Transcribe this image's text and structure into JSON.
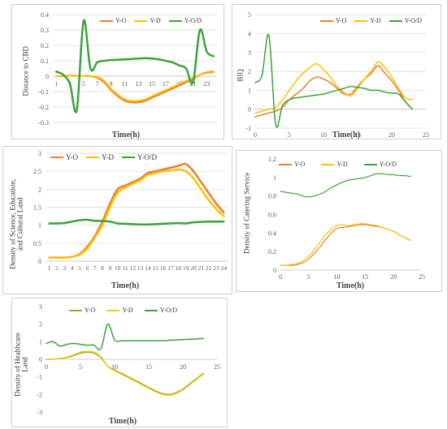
{
  "colors": {
    "Y-O": "#ED7D31",
    "Y-D": "#FFC000",
    "Y-O/D": "#3AA33A",
    "Y-O-p5": "#A6A22A",
    "Y-D-p5": "#E5D21C"
  },
  "chart_data": [
    {
      "type": "line",
      "ylabel": "Distance to CBD",
      "xlabel": "Time(h)",
      "ylim": [
        -0.3,
        0.4
      ],
      "yticks": [
        "0.4",
        "0.3",
        "0.2",
        "0.1",
        "0",
        "-0.1",
        "-0.2",
        "-0.3"
      ],
      "x": [
        1,
        2,
        3,
        4,
        5,
        6,
        7,
        8,
        9,
        10,
        11,
        12,
        13,
        14,
        15,
        16,
        17,
        18,
        19,
        20,
        21,
        22,
        23,
        24
      ],
      "xticks": [
        "1",
        "3",
        "5",
        "7",
        "9",
        "11",
        "13",
        "15",
        "17",
        "19",
        "21",
        "23"
      ],
      "legend_position": "top-center",
      "grid": "horizontal",
      "series": [
        {
          "name": "Y-O",
          "values": [
            0,
            0,
            0.005,
            0.003,
            0.002,
            0,
            -0.01,
            -0.04,
            -0.09,
            -0.13,
            -0.16,
            -0.17,
            -0.17,
            -0.16,
            -0.14,
            -0.12,
            -0.1,
            -0.08,
            -0.06,
            -0.04,
            -0.02,
            0.01,
            0.025,
            0.03
          ]
        },
        {
          "name": "Y-D",
          "values": [
            0,
            0,
            0.005,
            0.003,
            0.002,
            0,
            -0.005,
            -0.03,
            -0.08,
            -0.12,
            -0.15,
            -0.16,
            -0.16,
            -0.15,
            -0.13,
            -0.11,
            -0.09,
            -0.07,
            -0.05,
            -0.03,
            -0.01,
            0.01,
            0.02,
            0.025
          ]
        },
        {
          "name": "Y-O/D",
          "values": [
            0.03,
            0.01,
            -0.05,
            -0.22,
            0.36,
            0.05,
            0.09,
            0.1,
            0.105,
            0.107,
            0.11,
            0.112,
            0.115,
            0.117,
            0.115,
            0.11,
            0.1,
            0.09,
            0.07,
            0.05,
            -0.04,
            0.3,
            0.16,
            0.13
          ]
        }
      ]
    },
    {
      "type": "line",
      "ylabel": "BIQ",
      "xlabel": "Time(h)",
      "ylim": [
        -1,
        5
      ],
      "xlim": [
        0,
        25
      ],
      "yticks": [
        "5",
        "4",
        "3",
        "2",
        "1",
        "0",
        "-1"
      ],
      "xticks": [
        "0",
        "5",
        "10",
        "15",
        "20",
        "25"
      ],
      "legend_position": "top-right",
      "grid": "horizontal",
      "x": [
        0,
        1,
        2,
        3,
        4,
        5,
        6,
        7,
        8,
        9,
        10,
        11,
        12,
        13,
        14,
        15,
        16,
        17,
        18,
        19,
        20,
        21,
        22,
        23
      ],
      "series": [
        {
          "name": "Y-O",
          "values": [
            -0.4,
            -0.3,
            -0.2,
            -0.1,
            0.1,
            0.5,
            0.8,
            1.1,
            1.5,
            1.7,
            1.6,
            1.4,
            1.1,
            0.8,
            0.8,
            1.2,
            1.6,
            1.9,
            2.3,
            1.9,
            1.5,
            1.0,
            0.4,
            0
          ]
        },
        {
          "name": "Y-D",
          "values": [
            -0.2,
            -0.1,
            0,
            0.1,
            0.5,
            1.0,
            1.5,
            1.9,
            2.2,
            2.4,
            2.1,
            1.7,
            1.2,
            0.9,
            0.7,
            1.1,
            1.6,
            2.0,
            2.5,
            2.2,
            1.7,
            1.1,
            0.6,
            0.5
          ]
        },
        {
          "name": "Y-O/D",
          "values": [
            1.4,
            1.8,
            3.9,
            -0.8,
            0.2,
            0.5,
            0.6,
            0.65,
            0.7,
            0.75,
            0.8,
            0.9,
            1.0,
            1.1,
            1.2,
            1.15,
            1.1,
            1.0,
            1.0,
            0.9,
            0.85,
            0.8,
            0.4,
            0
          ]
        }
      ]
    },
    {
      "type": "line",
      "ylabel": "Density of Science, Education,\nand Cultural Land",
      "xlabel": "Time(h)",
      "ylim": [
        0,
        3
      ],
      "yticks": [
        "3",
        "2.5",
        "2",
        "1.5",
        "1",
        "0.5",
        "0"
      ],
      "x": [
        1,
        2,
        3,
        4,
        5,
        6,
        7,
        8,
        9,
        10,
        11,
        12,
        13,
        14,
        15,
        16,
        17,
        18,
        19,
        20,
        21,
        22,
        23,
        24
      ],
      "xticks": [
        "1",
        "2",
        "3",
        "4",
        "5",
        "6",
        "7",
        "8",
        "9",
        "10",
        "11",
        "12",
        "13",
        "14",
        "15",
        "16",
        "17",
        "18",
        "19",
        "20",
        "21",
        "22",
        "23",
        "24"
      ],
      "legend_position": "top-left",
      "grid": "horizontal",
      "series": [
        {
          "name": "Y-O",
          "values": [
            0.1,
            0.1,
            0.1,
            0.12,
            0.2,
            0.4,
            0.7,
            1.1,
            1.6,
            2.0,
            2.1,
            2.2,
            2.3,
            2.45,
            2.5,
            2.55,
            2.6,
            2.65,
            2.7,
            2.5,
            2.2,
            1.9,
            1.6,
            1.35
          ]
        },
        {
          "name": "Y-D",
          "values": [
            0.1,
            0.1,
            0.1,
            0.12,
            0.18,
            0.35,
            0.65,
            1.0,
            1.5,
            1.9,
            2.05,
            2.15,
            2.25,
            2.4,
            2.45,
            2.5,
            2.52,
            2.55,
            2.5,
            2.3,
            2.0,
            1.7,
            1.45,
            1.25
          ]
        },
        {
          "name": "Y-O/D",
          "values": [
            1.05,
            1.05,
            1.06,
            1.1,
            1.14,
            1.15,
            1.12,
            1.12,
            1.1,
            1.05,
            1.04,
            1.03,
            1.02,
            1.02,
            1.03,
            1.04,
            1.05,
            1.06,
            1.05,
            1.08,
            1.09,
            1.1,
            1.1,
            1.1
          ]
        }
      ]
    },
    {
      "type": "line",
      "ylabel": "Density of Catering Service",
      "xlabel": "Time(h)",
      "ylim": [
        0,
        1.2
      ],
      "xlim": [
        0,
        25
      ],
      "yticks": [
        "1.2",
        "1",
        "0.8",
        "0.6",
        "0.4",
        "0.2",
        "0"
      ],
      "xticks": [
        "0",
        "5",
        "10",
        "15",
        "20",
        "25"
      ],
      "legend_position": "top-left",
      "grid": "none",
      "x": [
        0,
        1,
        2,
        3,
        4,
        5,
        6,
        7,
        8,
        9,
        10,
        11,
        12,
        13,
        14,
        15,
        16,
        17,
        18,
        19,
        20,
        21,
        22,
        23
      ],
      "series": [
        {
          "name": "Y-O",
          "values": [
            0.05,
            0.05,
            0.05,
            0.06,
            0.08,
            0.12,
            0.18,
            0.25,
            0.33,
            0.4,
            0.45,
            0.46,
            0.47,
            0.48,
            0.49,
            0.49,
            0.48,
            0.47,
            0.46,
            0.44,
            0.42,
            0.38,
            0.35,
            0.32
          ]
        },
        {
          "name": "Y-D",
          "values": [
            0.05,
            0.05,
            0.06,
            0.07,
            0.1,
            0.15,
            0.22,
            0.3,
            0.38,
            0.44,
            0.48,
            0.49,
            0.48,
            0.49,
            0.5,
            0.5,
            0.49,
            0.48,
            0.46,
            0.44,
            0.42,
            0.38,
            0.35,
            0.32
          ]
        },
        {
          "name": "Y-O/D",
          "values": [
            0.85,
            0.84,
            0.83,
            0.82,
            0.8,
            0.79,
            0.8,
            0.82,
            0.85,
            0.89,
            0.92,
            0.95,
            0.97,
            0.98,
            0.99,
            1.0,
            1.02,
            1.04,
            1.04,
            1.03,
            1.03,
            1.02,
            1.02,
            1.01
          ]
        }
      ]
    },
    {
      "type": "line",
      "ylabel": "Density of Healthcare\nLand",
      "xlabel": "Time(h)",
      "ylim": [
        -3,
        3
      ],
      "xlim": [
        0,
        25
      ],
      "yticks": [
        "3",
        "2",
        "1",
        "0",
        "-1",
        "-2",
        "-3"
      ],
      "xticks": [
        "0",
        "5",
        "10",
        "15",
        "20",
        "25"
      ],
      "legend_position": "top-center",
      "grid": "none",
      "x": [
        0,
        1,
        2,
        3,
        4,
        5,
        6,
        7,
        8,
        9,
        10,
        11,
        12,
        13,
        14,
        15,
        16,
        17,
        18,
        19,
        20,
        21,
        22,
        23
      ],
      "series": [
        {
          "name": "Y-O",
          "values": [
            0,
            0,
            0.05,
            0.1,
            0.2,
            0.35,
            0.4,
            0.35,
            0.1,
            -0.4,
            -0.6,
            -0.8,
            -1.0,
            -1.2,
            -1.4,
            -1.6,
            -1.8,
            -1.95,
            -2.0,
            -1.9,
            -1.7,
            -1.4,
            -1.1,
            -0.8
          ]
        },
        {
          "name": "Y-D",
          "values": [
            0,
            0,
            0.05,
            0.12,
            0.25,
            0.4,
            0.45,
            0.4,
            0.15,
            -0.4,
            -0.65,
            -0.85,
            -1.05,
            -1.25,
            -1.45,
            -1.65,
            -1.85,
            -2.0,
            -2.05,
            -1.95,
            -1.75,
            -1.45,
            -1.15,
            -0.85
          ]
        },
        {
          "name": "Y-O/D",
          "values": [
            0.9,
            1.0,
            0.75,
            0.85,
            0.9,
            0.85,
            0.8,
            0.8,
            0.6,
            2.0,
            1.1,
            1.05,
            1.05,
            1.05,
            1.05,
            1.05,
            1.05,
            1.05,
            1.08,
            1.1,
            1.12,
            1.14,
            1.16,
            1.18
          ]
        }
      ]
    }
  ]
}
